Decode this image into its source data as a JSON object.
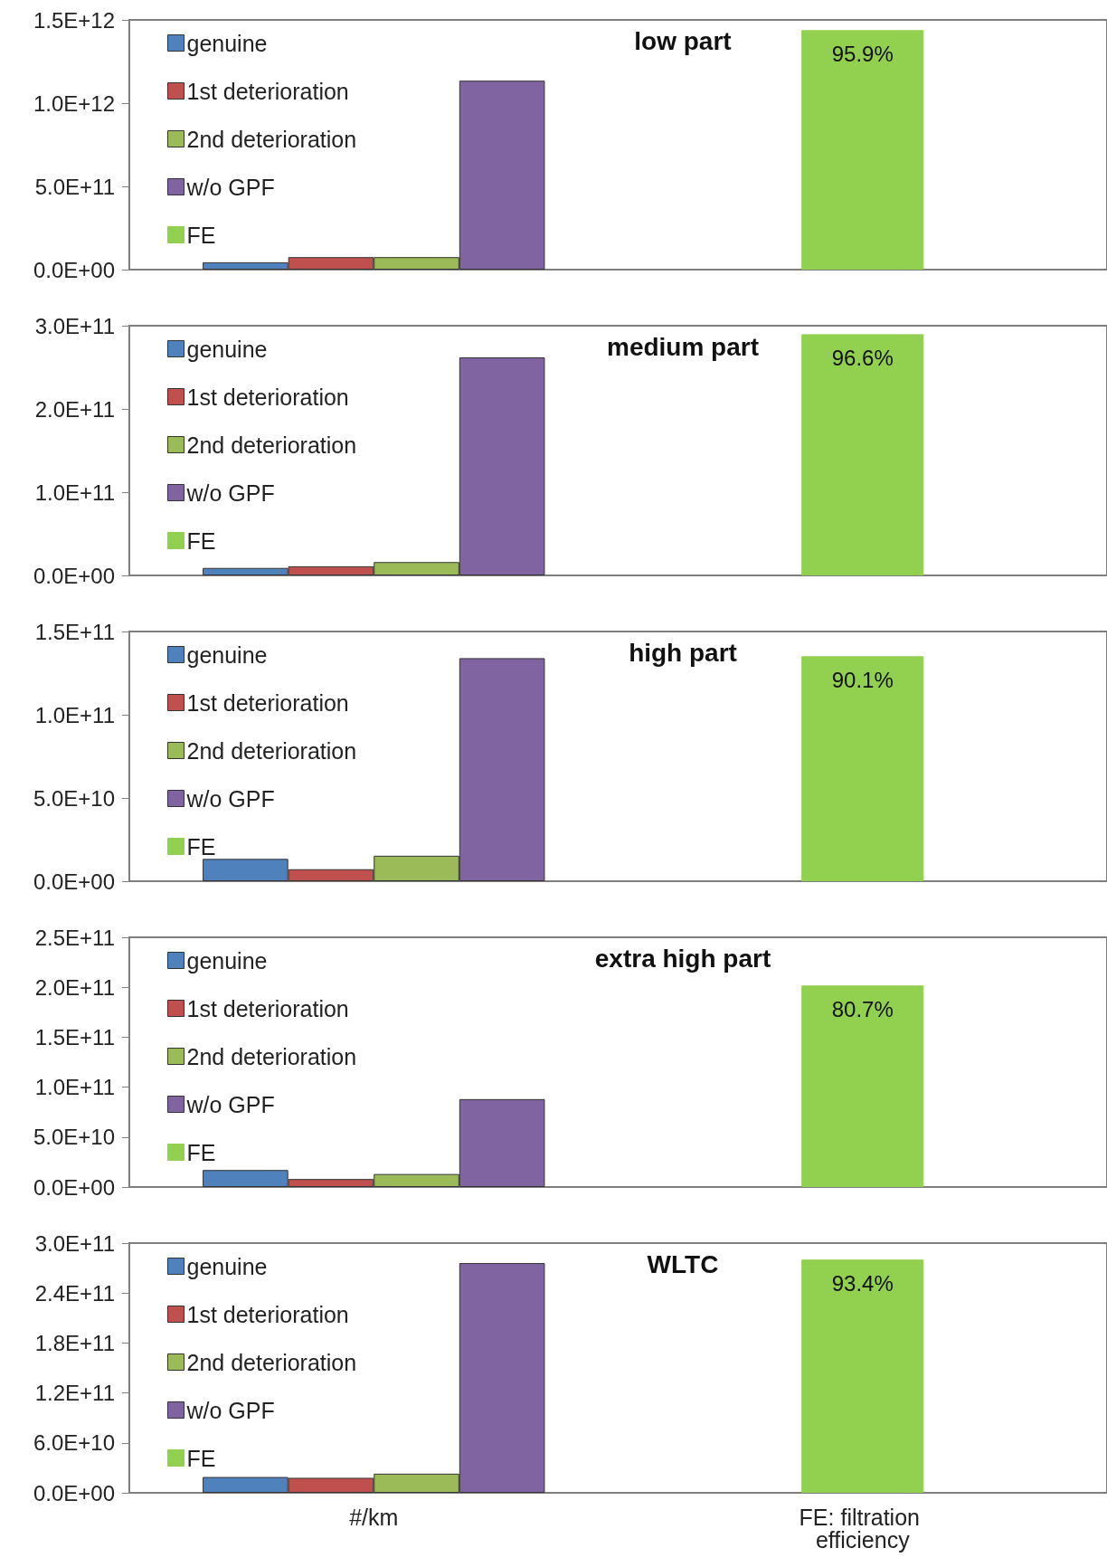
{
  "chart_data": [
    {
      "type": "bar",
      "title": "low part",
      "categories": [
        "#/km",
        "FE: filtration efficiency"
      ],
      "tick_labels": "y",
      "legend": "top left",
      "grid": false,
      "ylim": [
        0,
        1500000000000.0
      ],
      "yticks": [
        {
          "value": 0,
          "label": "0.0E+00"
        },
        {
          "value": 500000000000.0,
          "label": "5.0E+11"
        },
        {
          "value": 1000000000000.0,
          "label": "1.0E+12"
        },
        {
          "value": 1500000000000.0,
          "label": "1.5E+12"
        }
      ],
      "y2lim": [
        0,
        100
      ],
      "series": [
        {
          "name": "genuine",
          "color": "#4f81bd",
          "values": [
            44000000000.0,
            null
          ]
        },
        {
          "name": "1st deterioration",
          "color": "#c0504d",
          "values": [
            75000000000.0,
            null
          ]
        },
        {
          "name": "2nd deterioration",
          "color": "#9bbb59",
          "values": [
            75000000000.0,
            null
          ]
        },
        {
          "name": "w/o GPF",
          "color": "#8064a2",
          "values": [
            1135000000000.0,
            null
          ]
        },
        {
          "name": "FE",
          "color": "#92d050",
          "axis": "y2",
          "values": [
            null,
            95.9
          ],
          "value_labels": [
            null,
            "95.9%"
          ]
        }
      ]
    },
    {
      "type": "bar",
      "title": "medium part",
      "categories": [
        "#/km",
        "FE: filtration efficiency"
      ],
      "tick_labels": "y",
      "legend": "top left",
      "grid": false,
      "ylim": [
        0,
        300000000000.0
      ],
      "yticks": [
        {
          "value": 0,
          "label": "0.0E+00"
        },
        {
          "value": 100000000000.0,
          "label": "1.0E+11"
        },
        {
          "value": 200000000000.0,
          "label": "2.0E+11"
        },
        {
          "value": 300000000000.0,
          "label": "3.0E+11"
        }
      ],
      "y2lim": [
        0,
        100
      ],
      "series": [
        {
          "name": "genuine",
          "color": "#4f81bd",
          "values": [
            9000000000.0,
            null
          ]
        },
        {
          "name": "1st deterioration",
          "color": "#c0504d",
          "values": [
            11000000000.0,
            null
          ]
        },
        {
          "name": "2nd deterioration",
          "color": "#9bbb59",
          "values": [
            16000000000.0,
            null
          ]
        },
        {
          "name": "w/o GPF",
          "color": "#8064a2",
          "values": [
            262000000000.0,
            null
          ]
        },
        {
          "name": "FE",
          "color": "#92d050",
          "axis": "y2",
          "values": [
            null,
            96.6
          ],
          "value_labels": [
            null,
            "96.6%"
          ]
        }
      ]
    },
    {
      "type": "bar",
      "title": "high part",
      "categories": [
        "#/km",
        "FE: filtration efficiency"
      ],
      "tick_labels": "y",
      "legend": "top left",
      "grid": false,
      "ylim": [
        0,
        150000000000.0
      ],
      "yticks": [
        {
          "value": 0,
          "label": "0.0E+00"
        },
        {
          "value": 50000000000.0,
          "label": "5.0E+10"
        },
        {
          "value": 100000000000.0,
          "label": "1.0E+11"
        },
        {
          "value": 150000000000.0,
          "label": "1.5E+11"
        }
      ],
      "y2lim": [
        0,
        100
      ],
      "series": [
        {
          "name": "genuine",
          "color": "#4f81bd",
          "values": [
            13400000000.0,
            null
          ]
        },
        {
          "name": "1st deterioration",
          "color": "#c0504d",
          "values": [
            7200000000.0,
            null
          ]
        },
        {
          "name": "2nd deterioration",
          "color": "#9bbb59",
          "values": [
            15300000000.0,
            null
          ]
        },
        {
          "name": "w/o GPF",
          "color": "#8064a2",
          "values": [
            134000000000.0,
            null
          ]
        },
        {
          "name": "FE",
          "color": "#92d050",
          "axis": "y2",
          "values": [
            null,
            90.1
          ],
          "value_labels": [
            null,
            "90.1%"
          ]
        }
      ]
    },
    {
      "type": "bar",
      "title": "extra high part",
      "categories": [
        "#/km",
        "FE: filtration efficiency"
      ],
      "tick_labels": "y",
      "legend": "top left",
      "grid": false,
      "ylim": [
        0,
        250000000000.0
      ],
      "yticks": [
        {
          "value": 0,
          "label": "0.0E+00"
        },
        {
          "value": 50000000000.0,
          "label": "5.0E+10"
        },
        {
          "value": 100000000000.0,
          "label": "1.0E+11"
        },
        {
          "value": 150000000000.0,
          "label": "1.5E+11"
        },
        {
          "value": 200000000000.0,
          "label": "2.0E+11"
        },
        {
          "value": 250000000000.0,
          "label": "2.5E+11"
        }
      ],
      "y2lim": [
        0,
        100
      ],
      "series": [
        {
          "name": "genuine",
          "color": "#4f81bd",
          "values": [
            17000000000.0,
            null
          ]
        },
        {
          "name": "1st deterioration",
          "color": "#c0504d",
          "values": [
            8000000000.0,
            null
          ]
        },
        {
          "name": "2nd deterioration",
          "color": "#9bbb59",
          "values": [
            13000000000.0,
            null
          ]
        },
        {
          "name": "w/o GPF",
          "color": "#8064a2",
          "values": [
            88000000000.0,
            null
          ]
        },
        {
          "name": "FE",
          "color": "#92d050",
          "axis": "y2",
          "values": [
            null,
            80.7
          ],
          "value_labels": [
            null,
            "80.7%"
          ]
        }
      ]
    },
    {
      "type": "bar",
      "title": "WLTC",
      "categories": [
        "#/km",
        "FE: filtration efficiency"
      ],
      "legend": "top left",
      "grid": false,
      "ylim": [
        0,
        300000000000.0
      ],
      "yticks": [
        {
          "value": 0,
          "label": "0.0E+00"
        },
        {
          "value": 60000000000.0,
          "label": "6.0E+10"
        },
        {
          "value": 120000000000.0,
          "label": "1.2E+11"
        },
        {
          "value": 180000000000.0,
          "label": "1.8E+11"
        },
        {
          "value": 240000000000.0,
          "label": "2.4E+11"
        },
        {
          "value": 300000000000.0,
          "label": "3.0E+11"
        }
      ],
      "y2lim": [
        0,
        100
      ],
      "series": [
        {
          "name": "genuine",
          "color": "#4f81bd",
          "values": [
            19000000000.0,
            null
          ]
        },
        {
          "name": "1st deterioration",
          "color": "#c0504d",
          "values": [
            18000000000.0,
            null
          ]
        },
        {
          "name": "2nd deterioration",
          "color": "#9bbb59",
          "values": [
            23000000000.0,
            null
          ]
        },
        {
          "name": "w/o GPF",
          "color": "#8064a2",
          "values": [
            276000000000.0,
            null
          ]
        },
        {
          "name": "FE",
          "color": "#92d050",
          "axis": "y2",
          "values": [
            null,
            93.4
          ],
          "value_labels": [
            null,
            "93.4%"
          ]
        }
      ]
    }
  ]
}
